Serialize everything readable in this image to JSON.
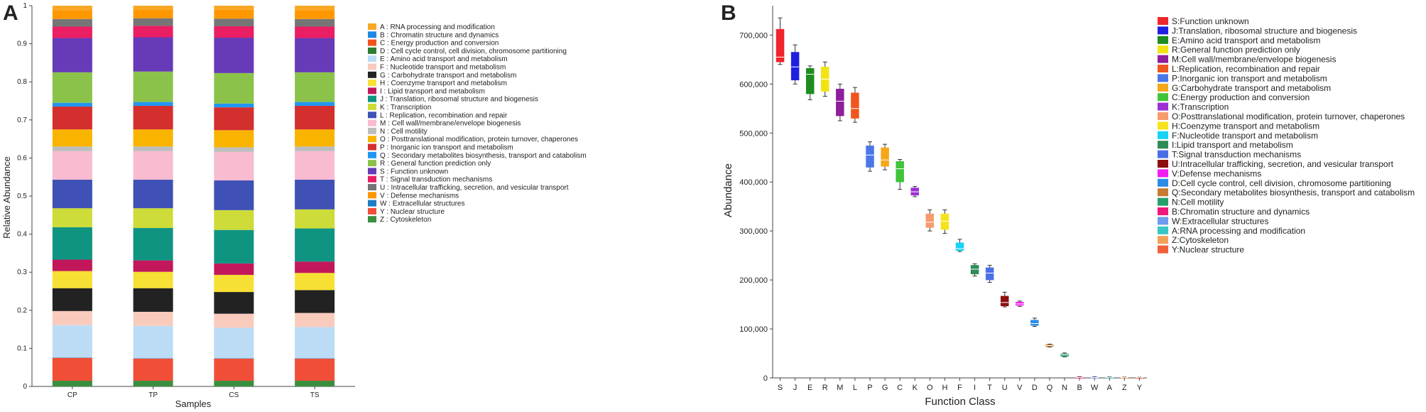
{
  "panel_labels": {
    "a": "A",
    "b": "B"
  },
  "chart_data": [
    {
      "type": "bar",
      "stacked": true,
      "panel": "A",
      "title": "",
      "xlabel": "Samples",
      "ylabel": "Relative Abundance",
      "ylim": [
        0,
        1
      ],
      "yticks": [
        "0",
        "0.1",
        "0.2",
        "0.3",
        "0.4",
        "0.5",
        "0.6",
        "0.7",
        "0.8",
        "0.9",
        "1"
      ],
      "categories": [
        "CP",
        "TP",
        "CS",
        "TS"
      ],
      "series": [
        {
          "code": "Z",
          "name": "Z : Cytoskeleton",
          "color": "#3a8f3e",
          "values": [
            0.015,
            0.015,
            0.015,
            0.015
          ]
        },
        {
          "code": "Y",
          "name": "Y : Nuclear structure",
          "color": "#f04e37",
          "values": [
            0.06,
            0.058,
            0.058,
            0.058
          ]
        },
        {
          "code": "W",
          "name": "W : Extracellular structures",
          "color": "#1c7cc4",
          "values": [
            0.001,
            0.001,
            0.001,
            0.001
          ]
        },
        {
          "code": "E",
          "name": "E : Amino acid transport and metabolism",
          "color": "#bcdcf5",
          "values": [
            0.085,
            0.085,
            0.08,
            0.082
          ]
        },
        {
          "code": "F",
          "name": "F : Nucleotide transport and metabolism",
          "color": "#f9cbbd",
          "values": [
            0.037,
            0.037,
            0.037,
            0.037
          ]
        },
        {
          "code": "G",
          "name": "G : Carbohydrate transport and metabolism",
          "color": "#222222",
          "values": [
            0.06,
            0.062,
            0.057,
            0.06
          ]
        },
        {
          "code": "H",
          "name": "H : Coenzyme transport and metabolism",
          "color": "#f7e034",
          "values": [
            0.045,
            0.043,
            0.045,
            0.045
          ]
        },
        {
          "code": "I",
          "name": "I : Lipid transport and metabolism",
          "color": "#c2185b",
          "values": [
            0.03,
            0.03,
            0.03,
            0.03
          ]
        },
        {
          "code": "J",
          "name": "J : Translation, ribosomal structure and biogenesis",
          "color": "#0f9482",
          "values": [
            0.085,
            0.085,
            0.088,
            0.087
          ]
        },
        {
          "code": "K",
          "name": "K : Transcription",
          "color": "#cddc39",
          "values": [
            0.05,
            0.052,
            0.052,
            0.05
          ]
        },
        {
          "code": "L",
          "name": "L : Replication, recombination and repair",
          "color": "#3f51b5",
          "values": [
            0.075,
            0.075,
            0.078,
            0.078
          ]
        },
        {
          "code": "M",
          "name": "M : Cell wall/membrane/envelope biogenesis",
          "color": "#f8bbd0",
          "values": [
            0.075,
            0.075,
            0.075,
            0.075
          ]
        },
        {
          "code": "N",
          "name": "N : Cell motility",
          "color": "#bdbdbd",
          "values": [
            0.012,
            0.012,
            0.012,
            0.012
          ]
        },
        {
          "code": "O",
          "name": "O : Posttranslational modification, protein turnover, chaperones",
          "color": "#f9b400",
          "values": [
            0.045,
            0.045,
            0.045,
            0.045
          ]
        },
        {
          "code": "P",
          "name": "P : Inorganic ion transport and metabolism",
          "color": "#d32f2f",
          "values": [
            0.06,
            0.062,
            0.06,
            0.062
          ]
        },
        {
          "code": "Q",
          "name": "Q : Secondary metabolites biosynthesis, transport and catabolism",
          "color": "#2196f3",
          "values": [
            0.01,
            0.01,
            0.01,
            0.01
          ]
        },
        {
          "code": "R",
          "name": "R : General function prediction only",
          "color": "#8bc34a",
          "values": [
            0.08,
            0.08,
            0.08,
            0.078
          ]
        },
        {
          "code": "S",
          "name": "S : Function unknown",
          "color": "#673ab7",
          "values": [
            0.09,
            0.09,
            0.093,
            0.09
          ]
        },
        {
          "code": "T",
          "name": "T : Signal transduction mechanisms",
          "color": "#e91e63",
          "values": [
            0.03,
            0.03,
            0.03,
            0.03
          ]
        },
        {
          "code": "U",
          "name": "U : Intracellular trafficking, secretion, and vesicular transport",
          "color": "#757575",
          "values": [
            0.02,
            0.02,
            0.02,
            0.02
          ]
        },
        {
          "code": "V",
          "name": "V : Defense mechanisms",
          "color": "#ff9800",
          "values": [
            0.023,
            0.023,
            0.023,
            0.023
          ]
        }
      ],
      "legend": [
        {
          "label": "A : RNA processing and modification",
          "color": "#f9a825"
        },
        {
          "label": "B : Chromatin structure and dynamics",
          "color": "#1e88e5"
        },
        {
          "label": "C : Energy production and conversion",
          "color": "#f4511e"
        },
        {
          "label": "D : Cell cycle control, cell division, chromosome partitioning",
          "color": "#2e7d32"
        },
        {
          "label": "E : Amino acid transport and metabolism",
          "color": "#bcdcf5"
        },
        {
          "label": "F : Nucleotide transport and metabolism",
          "color": "#f9cbbd"
        },
        {
          "label": "G : Carbohydrate transport and metabolism",
          "color": "#222222"
        },
        {
          "label": "H : Coenzyme transport and metabolism",
          "color": "#f7e034"
        },
        {
          "label": "I : Lipid transport and metabolism",
          "color": "#c2185b"
        },
        {
          "label": "J : Translation, ribosomal structure and biogenesis",
          "color": "#0f9482"
        },
        {
          "label": "K : Transcription",
          "color": "#cddc39"
        },
        {
          "label": "L : Replication, recombination and repair",
          "color": "#3f51b5"
        },
        {
          "label": "M : Cell wall/membrane/envelope biogenesis",
          "color": "#f8bbd0"
        },
        {
          "label": "N : Cell motility",
          "color": "#bdbdbd"
        },
        {
          "label": "O : Posttranslational modification, protein turnover, chaperones",
          "color": "#f9b400"
        },
        {
          "label": "P : Inorganic ion transport and metabolism",
          "color": "#d32f2f"
        },
        {
          "label": "Q : Secondary metabolites biosynthesis, transport and catabolism",
          "color": "#2196f3"
        },
        {
          "label": "R : General function prediction only",
          "color": "#8bc34a"
        },
        {
          "label": "S : Function unknown",
          "color": "#673ab7"
        },
        {
          "label": "T : Signal transduction mechanisms",
          "color": "#e91e63"
        },
        {
          "label": "U : Intracellular trafficking, secretion, and vesicular transport",
          "color": "#757575"
        },
        {
          "label": "V : Defense mechanisms",
          "color": "#ff9800"
        },
        {
          "label": "W : Extracellular structures",
          "color": "#1c7cc4"
        },
        {
          "label": "Y : Nuclear structure",
          "color": "#f04e37"
        },
        {
          "label": "Z : Cytoskeleton",
          "color": "#3a8f3e"
        }
      ]
    },
    {
      "type": "box",
      "panel": "B",
      "title": "",
      "xlabel": "Function Class",
      "ylabel": "Abundance",
      "ylim": [
        0,
        760000
      ],
      "yticks": [
        0,
        100000,
        200000,
        300000,
        400000,
        500000,
        600000,
        700000
      ],
      "ytick_labels": [
        "0",
        "100,000",
        "200,000",
        "300,000",
        "400,000",
        "500,000",
        "600,000",
        "700,000"
      ],
      "categories": [
        "S",
        "J",
        "E",
        "R",
        "M",
        "L",
        "P",
        "G",
        "C",
        "K",
        "O",
        "H",
        "F",
        "I",
        "T",
        "U",
        "V",
        "D",
        "Q",
        "N",
        "B",
        "W",
        "A",
        "Z",
        "Y"
      ],
      "boxes": [
        {
          "cls": "S",
          "color": "#f0242b",
          "min": 640000,
          "q1": 645000,
          "median": 655000,
          "q3": 712000,
          "max": 735000
        },
        {
          "cls": "J",
          "color": "#1f1fe0",
          "min": 600000,
          "q1": 608000,
          "median": 635000,
          "q3": 665000,
          "max": 680000
        },
        {
          "cls": "E",
          "color": "#1e8c1e",
          "min": 568000,
          "q1": 580000,
          "median": 620000,
          "q3": 632000,
          "max": 637000
        },
        {
          "cls": "R",
          "color": "#f2e413",
          "min": 575000,
          "q1": 585000,
          "median": 610000,
          "q3": 635000,
          "max": 645000
        },
        {
          "cls": "M",
          "color": "#8e1e9c",
          "min": 525000,
          "q1": 535000,
          "median": 565000,
          "q3": 590000,
          "max": 600000
        },
        {
          "cls": "L",
          "color": "#f0561e",
          "min": 522000,
          "q1": 530000,
          "median": 550000,
          "q3": 582000,
          "max": 593000
        },
        {
          "cls": "P",
          "color": "#4a77e8",
          "min": 422000,
          "q1": 430000,
          "median": 455000,
          "q3": 474000,
          "max": 482000
        },
        {
          "cls": "G",
          "color": "#f5a719",
          "min": 425000,
          "q1": 432000,
          "median": 445000,
          "q3": 470000,
          "max": 477000
        },
        {
          "cls": "C",
          "color": "#3fc43a",
          "min": 385000,
          "q1": 400000,
          "median": 427000,
          "q3": 442000,
          "max": 446000
        },
        {
          "cls": "K",
          "color": "#9e2fd6",
          "min": 370000,
          "q1": 373000,
          "median": 380000,
          "q3": 388000,
          "max": 391000
        },
        {
          "cls": "O",
          "color": "#f79a6e",
          "min": 300000,
          "q1": 307000,
          "median": 318000,
          "q3": 335000,
          "max": 343000
        },
        {
          "cls": "H",
          "color": "#f5e31c",
          "min": 295000,
          "q1": 303000,
          "median": 320000,
          "q3": 335000,
          "max": 343000
        },
        {
          "cls": "F",
          "color": "#19d2f5",
          "min": 258000,
          "q1": 260000,
          "median": 264000,
          "q3": 276000,
          "max": 283000
        },
        {
          "cls": "I",
          "color": "#2e8b57",
          "min": 208000,
          "q1": 212000,
          "median": 222000,
          "q3": 230000,
          "max": 233000
        },
        {
          "cls": "T",
          "color": "#4a6ee6",
          "min": 195000,
          "q1": 200000,
          "median": 214000,
          "q3": 225000,
          "max": 230000
        },
        {
          "cls": "U",
          "color": "#8b0f0f",
          "min": 145000,
          "q1": 147000,
          "median": 154000,
          "q3": 167000,
          "max": 175000
        },
        {
          "cls": "V",
          "color": "#f01ef0",
          "min": 146000,
          "q1": 148000,
          "median": 151000,
          "q3": 155000,
          "max": 157000
        },
        {
          "cls": "D",
          "color": "#2b8de8",
          "min": 105000,
          "q1": 107000,
          "median": 111000,
          "q3": 118000,
          "max": 122000
        },
        {
          "cls": "Q",
          "color": "#c87a30",
          "min": 63000,
          "q1": 64000,
          "median": 66000,
          "q3": 68000,
          "max": 69000
        },
        {
          "cls": "N",
          "color": "#26a06a",
          "min": 43000,
          "q1": 44000,
          "median": 47000,
          "q3": 49000,
          "max": 51000
        },
        {
          "cls": "B",
          "color": "#f0187a",
          "min": 0,
          "q1": 300,
          "median": 800,
          "q3": 1500,
          "max": 2500
        },
        {
          "cls": "W",
          "color": "#6e9cf0",
          "min": 0,
          "q1": 300,
          "median": 800,
          "q3": 1500,
          "max": 2500
        },
        {
          "cls": "A",
          "color": "#38c6c6",
          "min": 0,
          "q1": 200,
          "median": 500,
          "q3": 1000,
          "max": 1800
        },
        {
          "cls": "Z",
          "color": "#f5a05a",
          "min": 0,
          "q1": 200,
          "median": 500,
          "q3": 900,
          "max": 1500
        },
        {
          "cls": "Y",
          "color": "#f0603a",
          "min": 0,
          "q1": 100,
          "median": 300,
          "q3": 700,
          "max": 1200
        }
      ],
      "legend": [
        {
          "label": "S:Function unknown",
          "color": "#f0242b"
        },
        {
          "label": "J:Translation, ribosomal structure and biogenesis",
          "color": "#1f1fe0"
        },
        {
          "label": "E:Amino acid transport and metabolism",
          "color": "#1e8c1e"
        },
        {
          "label": "R:General function prediction only",
          "color": "#f2e413"
        },
        {
          "label": "M:Cell wall/membrane/envelope biogenesis",
          "color": "#8e1e9c"
        },
        {
          "label": "L:Replication, recombination and repair",
          "color": "#f0561e"
        },
        {
          "label": "P:Inorganic ion transport and metabolism",
          "color": "#4a77e8"
        },
        {
          "label": "G:Carbohydrate transport and metabolism",
          "color": "#f5a719"
        },
        {
          "label": "C:Energy production and conversion",
          "color": "#3fc43a"
        },
        {
          "label": "K:Transcription",
          "color": "#9e2fd6"
        },
        {
          "label": "O:Posttranslational modification, protein turnover, chaperones",
          "color": "#f79a6e"
        },
        {
          "label": "H:Coenzyme transport and metabolism",
          "color": "#f5e31c"
        },
        {
          "label": "F:Nucleotide transport and metabolism",
          "color": "#19d2f5"
        },
        {
          "label": "I:Lipid transport and metabolism",
          "color": "#2e8b57"
        },
        {
          "label": "T:Signal transduction mechanisms",
          "color": "#4a6ee6"
        },
        {
          "label": "U:Intracellular trafficking, secretion, and vesicular transport",
          "color": "#8b0f0f"
        },
        {
          "label": "V:Defense mechanisms",
          "color": "#f01ef0"
        },
        {
          "label": "D:Cell cycle control, cell division, chromosome partitioning",
          "color": "#2b8de8"
        },
        {
          "label": "Q:Secondary metabolites biosynthesis, transport and catabolism",
          "color": "#c87a30"
        },
        {
          "label": "N:Cell motility",
          "color": "#26a06a"
        },
        {
          "label": "B:Chromatin structure and dynamics",
          "color": "#f0187a"
        },
        {
          "label": "W:Extracellular structures",
          "color": "#6e9cf0"
        },
        {
          "label": "A:RNA processing and modification",
          "color": "#38c6c6"
        },
        {
          "label": "Z:Cytoskeleton",
          "color": "#f5a05a"
        },
        {
          "label": "Y:Nuclear structure",
          "color": "#f0603a"
        }
      ]
    }
  ]
}
